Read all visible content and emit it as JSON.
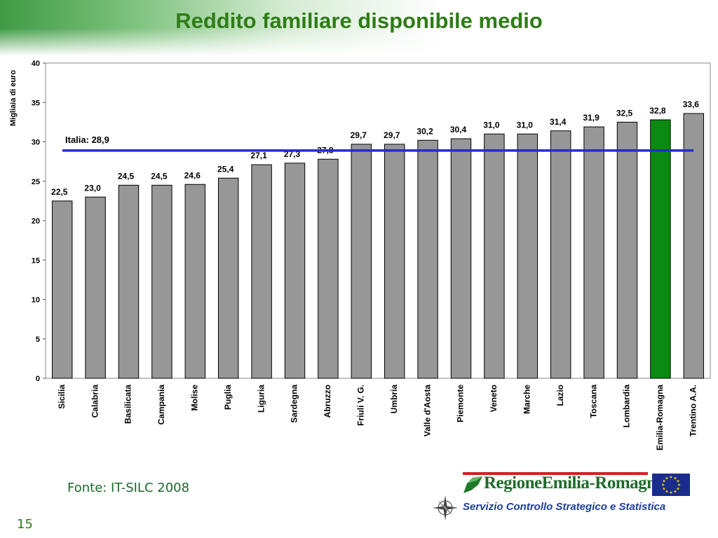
{
  "slide": {
    "title": "Reddito familiare disponibile medio",
    "source": "Fonte: IT-SILC 2008",
    "page_number": "15"
  },
  "logo": {
    "wordmark": "RegioneEmilia-Romagna",
    "service": "Servizio Controllo Strategico e Statistica"
  },
  "chart_data": {
    "type": "bar",
    "ylabel": "Migliaia di euro",
    "xlabel": "",
    "ylim": [
      0,
      40
    ],
    "yticks": [
      0,
      5,
      10,
      15,
      20,
      25,
      30,
      35,
      40
    ],
    "categories": [
      "Sicilia",
      "Calabria",
      "Basilicata",
      "Campania",
      "Molise",
      "Puglia",
      "Liguria",
      "Sardegna",
      "Abruzzo",
      "Friuli V. G.",
      "Umbria",
      "Valle d'Aosta",
      "Piemonte",
      "Veneto",
      "Marche",
      "Lazio",
      "Toscana",
      "Lombardia",
      "Emilia-Romagna",
      "Trentino A.A."
    ],
    "values": [
      22.5,
      23.0,
      24.5,
      24.5,
      24.6,
      25.4,
      27.1,
      27.3,
      27.8,
      29.7,
      29.7,
      30.2,
      30.4,
      31.0,
      31.0,
      31.4,
      31.9,
      32.5,
      32.8,
      33.6
    ],
    "value_labels": [
      "22,5",
      "23,0",
      "24,5",
      "24,5",
      "24,6",
      "25,4",
      "27,1",
      "27,3",
      "27,8",
      "29,7",
      "29,7",
      "30,2",
      "30,4",
      "31,0",
      "31,0",
      "31,4",
      "31,9",
      "32,5",
      "32,8",
      "33,6"
    ],
    "highlight": "Emilia-Romagna",
    "reference_line": {
      "label": "Italia: 28,9",
      "value": 28.9
    },
    "grid": false,
    "legend": "none",
    "colors": {
      "bar": "#979797",
      "highlight": "#0b8a12",
      "reference": "#1f2bd6",
      "title": "#2e7d16"
    }
  }
}
